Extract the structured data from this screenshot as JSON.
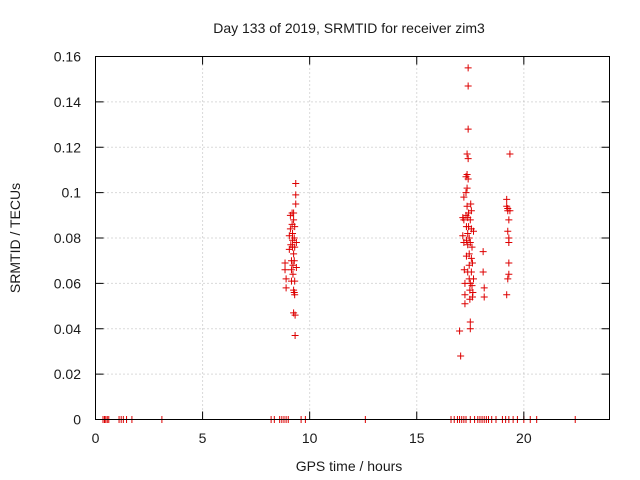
{
  "chart_data": {
    "type": "scatter",
    "title": "Day 133 of 2019, SRMTID for receiver zim3",
    "xlabel": "GPS time / hours",
    "ylabel": "SRMTID / TECUs",
    "xlim": [
      0,
      24
    ],
    "ylim": [
      0,
      0.16
    ],
    "xticks": [
      0,
      5,
      10,
      15,
      20
    ],
    "xtick_labels": [
      "0",
      "5",
      "10",
      "15",
      "20"
    ],
    "yticks": [
      0,
      0.02,
      0.04,
      0.06,
      0.08,
      0.1,
      0.12,
      0.14,
      0.16
    ],
    "ytick_labels": [
      "0",
      "0.02",
      "0.04",
      "0.06",
      "0.08",
      "0.1",
      "0.12",
      "0.14",
      "0.16"
    ],
    "grid": true,
    "marker": "+",
    "color": "#dd0000",
    "series": [
      {
        "name": "SRMTID",
        "points": [
          [
            0.35,
            0
          ],
          [
            0.42,
            0
          ],
          [
            0.48,
            0
          ],
          [
            0.55,
            0
          ],
          [
            0.62,
            0
          ],
          [
            1.1,
            0
          ],
          [
            1.2,
            0
          ],
          [
            1.3,
            0
          ],
          [
            1.45,
            0
          ],
          [
            1.7,
            0
          ],
          [
            3.1,
            0
          ],
          [
            8.2,
            0
          ],
          [
            8.35,
            0
          ],
          [
            8.6,
            0
          ],
          [
            8.7,
            0
          ],
          [
            8.8,
            0
          ],
          [
            8.9,
            0
          ],
          [
            9.0,
            0
          ],
          [
            9.6,
            0
          ],
          [
            9.8,
            0
          ],
          [
            12.6,
            0
          ],
          [
            16.6,
            0
          ],
          [
            16.75,
            0
          ],
          [
            16.9,
            0
          ],
          [
            17.0,
            0
          ],
          [
            17.1,
            0
          ],
          [
            17.2,
            0
          ],
          [
            17.3,
            0
          ],
          [
            17.5,
            0
          ],
          [
            17.7,
            0
          ],
          [
            17.85,
            0
          ],
          [
            17.95,
            0
          ],
          [
            18.05,
            0
          ],
          [
            18.15,
            0
          ],
          [
            18.25,
            0
          ],
          [
            18.35,
            0
          ],
          [
            18.5,
            0
          ],
          [
            18.7,
            0
          ],
          [
            19.0,
            0
          ],
          [
            19.15,
            0
          ],
          [
            19.3,
            0
          ],
          [
            19.5,
            0
          ],
          [
            19.7,
            0
          ],
          [
            20.0,
            0
          ],
          [
            20.3,
            0
          ],
          [
            20.6,
            0
          ],
          [
            22.4,
            0
          ],
          [
            8.85,
            0.069
          ],
          [
            8.85,
            0.066
          ],
          [
            8.9,
            0.062
          ],
          [
            8.9,
            0.058
          ],
          [
            9.05,
            0.075
          ],
          [
            9.05,
            0.081
          ],
          [
            9.1,
            0.09
          ],
          [
            9.1,
            0.084
          ],
          [
            9.12,
            0.077
          ],
          [
            9.15,
            0.07
          ],
          [
            9.15,
            0.066
          ],
          [
            9.15,
            0.061
          ],
          [
            9.18,
            0.091
          ],
          [
            9.18,
            0.086
          ],
          [
            9.2,
            0.082
          ],
          [
            9.2,
            0.079
          ],
          [
            9.2,
            0.076
          ],
          [
            9.22,
            0.068
          ],
          [
            9.22,
            0.064
          ],
          [
            9.25,
            0.091
          ],
          [
            9.25,
            0.088
          ],
          [
            9.25,
            0.073
          ],
          [
            9.25,
            0.057
          ],
          [
            9.25,
            0.047
          ],
          [
            9.28,
            0.08
          ],
          [
            9.28,
            0.07
          ],
          [
            9.28,
            0.056
          ],
          [
            9.3,
            0.085
          ],
          [
            9.3,
            0.076
          ],
          [
            9.3,
            0.061
          ],
          [
            9.3,
            0.055
          ],
          [
            9.32,
            0.046
          ],
          [
            9.32,
            0.037
          ],
          [
            9.35,
            0.104
          ],
          [
            9.35,
            0.099
          ],
          [
            9.35,
            0.095
          ],
          [
            9.38,
            0.078
          ],
          [
            9.38,
            0.067
          ],
          [
            17.0,
            0.039
          ],
          [
            17.05,
            0.028
          ],
          [
            17.15,
            0.089
          ],
          [
            17.15,
            0.081
          ],
          [
            17.2,
            0.098
          ],
          [
            17.2,
            0.088
          ],
          [
            17.2,
            0.078
          ],
          [
            17.22,
            0.066
          ],
          [
            17.25,
            0.06
          ],
          [
            17.25,
            0.055
          ],
          [
            17.25,
            0.051
          ],
          [
            17.3,
            0.107
          ],
          [
            17.3,
            0.1
          ],
          [
            17.3,
            0.09
          ],
          [
            17.32,
            0.085
          ],
          [
            17.32,
            0.079
          ],
          [
            17.32,
            0.072
          ],
          [
            17.35,
            0.117
          ],
          [
            17.35,
            0.108
          ],
          [
            17.35,
            0.102
          ],
          [
            17.35,
            0.094
          ],
          [
            17.38,
            0.089
          ],
          [
            17.38,
            0.082
          ],
          [
            17.38,
            0.077
          ],
          [
            17.38,
            0.065
          ],
          [
            17.4,
            0.155
          ],
          [
            17.4,
            0.147
          ],
          [
            17.4,
            0.128
          ],
          [
            17.4,
            0.115
          ],
          [
            17.4,
            0.106
          ],
          [
            17.42,
            0.091
          ],
          [
            17.42,
            0.085
          ],
          [
            17.45,
            0.08
          ],
          [
            17.45,
            0.073
          ],
          [
            17.45,
            0.068
          ],
          [
            17.45,
            0.062
          ],
          [
            17.48,
            0.057
          ],
          [
            17.48,
            0.053
          ],
          [
            17.5,
            0.088
          ],
          [
            17.5,
            0.078
          ],
          [
            17.5,
            0.06
          ],
          [
            17.5,
            0.043
          ],
          [
            17.5,
            0.04
          ],
          [
            17.52,
            0.095
          ],
          [
            17.55,
            0.092
          ],
          [
            17.55,
            0.084
          ],
          [
            17.55,
            0.071
          ],
          [
            17.55,
            0.065
          ],
          [
            17.58,
            0.076
          ],
          [
            17.58,
            0.059
          ],
          [
            17.6,
            0.069
          ],
          [
            17.6,
            0.054
          ],
          [
            17.62,
            0.056
          ],
          [
            17.65,
            0.083
          ],
          [
            17.65,
            0.062
          ],
          [
            18.1,
            0.074
          ],
          [
            18.1,
            0.065
          ],
          [
            18.15,
            0.058
          ],
          [
            18.15,
            0.054
          ],
          [
            19.2,
            0.097
          ],
          [
            19.2,
            0.094
          ],
          [
            19.25,
            0.093
          ],
          [
            19.25,
            0.092
          ],
          [
            19.3,
            0.088
          ],
          [
            19.25,
            0.083
          ],
          [
            19.3,
            0.08
          ],
          [
            19.3,
            0.078
          ],
          [
            19.3,
            0.069
          ],
          [
            19.3,
            0.064
          ],
          [
            19.25,
            0.062
          ],
          [
            19.2,
            0.055
          ],
          [
            19.35,
            0.117
          ],
          [
            19.35,
            0.092
          ]
        ]
      }
    ]
  }
}
